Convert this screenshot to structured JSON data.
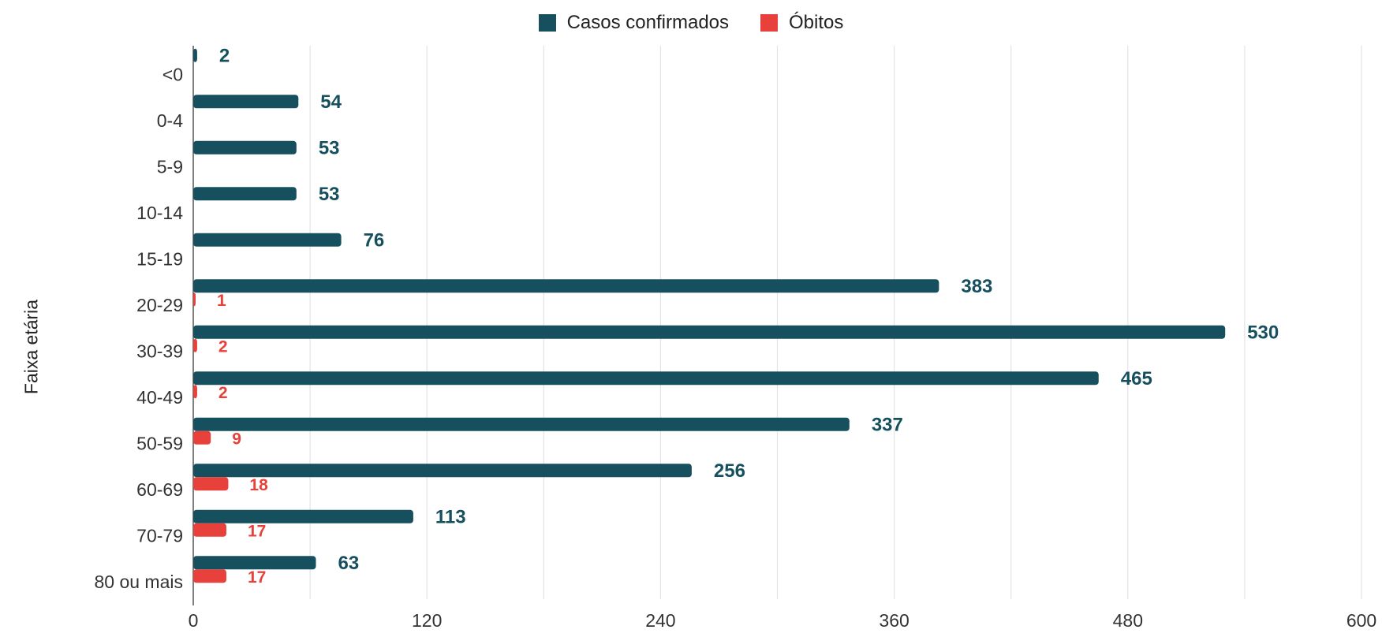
{
  "chart_data": {
    "type": "bar",
    "orientation": "horizontal",
    "categories": [
      "<0",
      "0-4",
      "5-9",
      "10-14",
      "15-19",
      "20-29",
      "30-39",
      "40-49",
      "50-59",
      "60-69",
      "70-79",
      "80 ou mais"
    ],
    "series": [
      {
        "name": "Casos confirmados",
        "color": "#16505e",
        "values": [
          2,
          54,
          53,
          53,
          76,
          383,
          530,
          465,
          337,
          256,
          113,
          63
        ],
        "labels": [
          "2",
          "54",
          "53",
          "53",
          "76",
          "383",
          "530",
          "465",
          "337",
          "256",
          "113",
          "63"
        ]
      },
      {
        "name": "Óbitos",
        "color": "#e8403a",
        "values": [
          null,
          null,
          null,
          null,
          null,
          1,
          2,
          2,
          9,
          18,
          17,
          17
        ],
        "labels": [
          null,
          null,
          null,
          null,
          null,
          "1",
          "2",
          "2",
          "9",
          "18",
          "17",
          "17"
        ]
      }
    ],
    "xlim": [
      0,
      600
    ],
    "xticks": [
      "0",
      "120",
      "240",
      "360",
      "480",
      "600"
    ],
    "xlabel": "",
    "ylabel": "Faixa etária",
    "grid": true,
    "legend_position": "top"
  }
}
